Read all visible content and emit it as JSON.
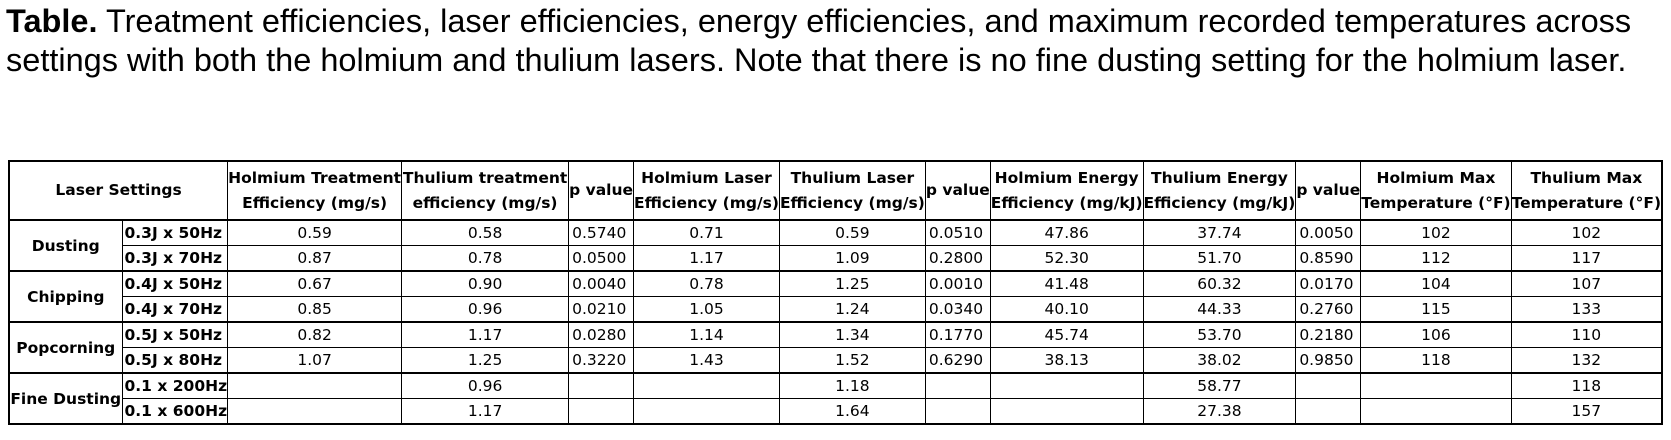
{
  "caption": {
    "lead": "Table.",
    "text": " Treatment efficiencies, laser efficiencies, energy efficiencies, and maximum recorded temperatures across settings with both the holmium and thulium lasers. Note that there is no fine dusting setting for the holmium laser."
  },
  "table": {
    "headers": [
      [
        "Laser Settings"
      ],
      [
        "Holmium Treatment",
        "Efficiency (mg/s)"
      ],
      [
        "Thulium treatment",
        "efficiency (mg/s)"
      ],
      [
        "p value"
      ],
      [
        "Holmium Laser",
        "Efficiency (mg/s)"
      ],
      [
        "Thulium Laser",
        "Efficiency (mg/s)"
      ],
      [
        "p value"
      ],
      [
        "Holmium Energy",
        "Efficiency (mg/kJ)"
      ],
      [
        "Thulium Energy",
        "Efficiency (mg/kJ)"
      ],
      [
        "p value"
      ],
      [
        "Holmium Max",
        "Temperature (°F)"
      ],
      [
        "Thulium Max",
        "Temperature (°F)"
      ]
    ],
    "groups": [
      {
        "name": "Dusting",
        "rows": [
          {
            "setting": "0.3J x 50Hz",
            "values": [
              "0.59",
              "0.58",
              "0.5740",
              "0.71",
              "0.59",
              "0.0510",
              "47.86",
              "37.74",
              "0.0050",
              "102",
              "102"
            ]
          },
          {
            "setting": "0.3J x 70Hz",
            "values": [
              "0.87",
              "0.78",
              "0.0500",
              "1.17",
              "1.09",
              "0.2800",
              "52.30",
              "51.70",
              "0.8590",
              "112",
              "117"
            ]
          }
        ]
      },
      {
        "name": "Chipping",
        "rows": [
          {
            "setting": "0.4J x 50Hz",
            "values": [
              "0.67",
              "0.90",
              "0.0040",
              "0.78",
              "1.25",
              "0.0010",
              "41.48",
              "60.32",
              "0.0170",
              "104",
              "107"
            ]
          },
          {
            "setting": "0.4J x 70Hz",
            "values": [
              "0.85",
              "0.96",
              "0.0210",
              "1.05",
              "1.24",
              "0.0340",
              "40.10",
              "44.33",
              "0.2760",
              "115",
              "133"
            ]
          }
        ]
      },
      {
        "name": "Popcorning",
        "rows": [
          {
            "setting": "0.5J x 50Hz",
            "values": [
              "0.82",
              "1.17",
              "0.0280",
              "1.14",
              "1.34",
              "0.1770",
              "45.74",
              "53.70",
              "0.2180",
              "106",
              "110"
            ]
          },
          {
            "setting": "0.5J x 80Hz",
            "values": [
              "1.07",
              "1.25",
              "0.3220",
              "1.43",
              "1.52",
              "0.6290",
              "38.13",
              "38.02",
              "0.9850",
              "118",
              "132"
            ]
          }
        ]
      },
      {
        "name": "Fine Dusting",
        "rows": [
          {
            "setting": "0.1 x 200Hz",
            "values": [
              "",
              "0.96",
              "",
              "",
              "1.18",
              "",
              "",
              "58.77",
              "",
              "",
              "118"
            ]
          },
          {
            "setting": "0.1 x 600Hz",
            "values": [
              "",
              "1.17",
              "",
              "",
              "1.64",
              "",
              "",
              "27.38",
              "",
              "",
              "157"
            ]
          }
        ]
      }
    ]
  }
}
